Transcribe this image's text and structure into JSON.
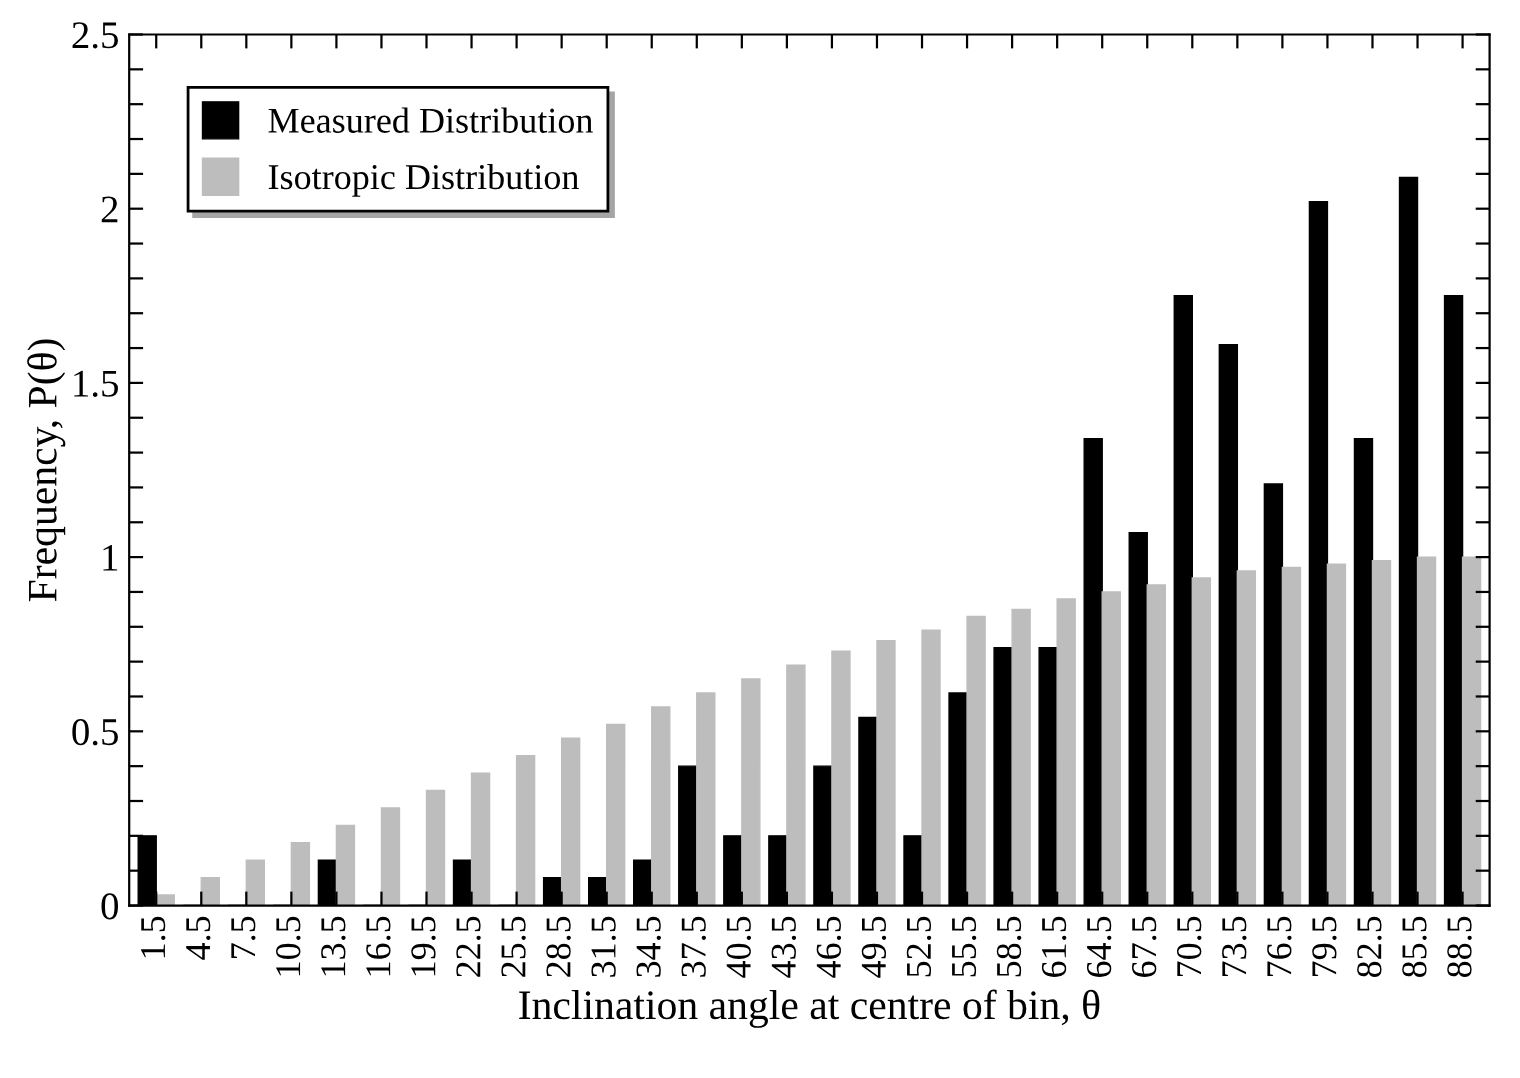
{
  "chart_data": {
    "type": "bar",
    "xlabel": "Inclination angle at centre of bin, θ",
    "ylabel": "Frequency, P(θ)",
    "categories": [
      "1.5",
      "4.5",
      "7.5",
      "10.5",
      "13.5",
      "16.5",
      "19.5",
      "22.5",
      "25.5",
      "28.5",
      "31.5",
      "34.5",
      "37.5",
      "40.5",
      "43.5",
      "46.5",
      "49.5",
      "52.5",
      "55.5",
      "58.5",
      "61.5",
      "64.5",
      "67.5",
      "70.5",
      "73.5",
      "76.5",
      "79.5",
      "82.5",
      "85.5",
      "88.5"
    ],
    "series": [
      {
        "name": "Measured Distribution",
        "color": "#000000",
        "values": [
          0.2,
          0,
          0,
          0,
          0.13,
          0,
          0,
          0.13,
          0,
          0.08,
          0.08,
          0.13,
          0.4,
          0.2,
          0.2,
          0.4,
          0.54,
          0.2,
          0.61,
          0.74,
          0.74,
          1.34,
          1.07,
          1.75,
          1.61,
          1.21,
          2.02,
          1.34,
          2.09,
          1.75
        ]
      },
      {
        "name": "Isotropic Distribution",
        "color": "#bdbdbd",
        "values": [
          0.03,
          0.08,
          0.13,
          0.18,
          0.23,
          0.28,
          0.33,
          0.38,
          0.43,
          0.48,
          0.52,
          0.57,
          0.61,
          0.65,
          0.69,
          0.73,
          0.76,
          0.79,
          0.83,
          0.85,
          0.88,
          0.9,
          0.92,
          0.94,
          0.96,
          0.97,
          0.98,
          0.99,
          1.0,
          1.0
        ]
      }
    ],
    "ylim": [
      0,
      2.5
    ],
    "yticks": [
      0,
      {
        "value": 0.1,
        "label": null
      },
      {
        "value": 0.2,
        "label": null
      },
      {
        "value": 0.3,
        "label": null
      },
      {
        "value": 0.4,
        "label": null
      },
      0.5,
      {
        "value": 0.6,
        "label": null
      },
      {
        "value": 0.7,
        "label": null
      },
      {
        "value": 0.8,
        "label": null
      },
      {
        "value": 0.9,
        "label": null
      },
      1,
      {
        "value": 1.1,
        "label": null
      },
      {
        "value": 1.2,
        "label": null
      },
      {
        "value": 1.3,
        "label": null
      },
      {
        "value": 1.4,
        "label": null
      },
      1.5,
      {
        "value": 1.6,
        "label": null
      },
      {
        "value": 1.7,
        "label": null
      },
      {
        "value": 1.8,
        "label": null
      },
      {
        "value": 1.9,
        "label": null
      },
      2,
      {
        "value": 2.1,
        "label": null
      },
      {
        "value": 2.2,
        "label": null
      },
      {
        "value": 2.3,
        "label": null
      },
      {
        "value": 2.4,
        "label": null
      },
      2.5
    ],
    "grid": false,
    "legend": "top left"
  }
}
